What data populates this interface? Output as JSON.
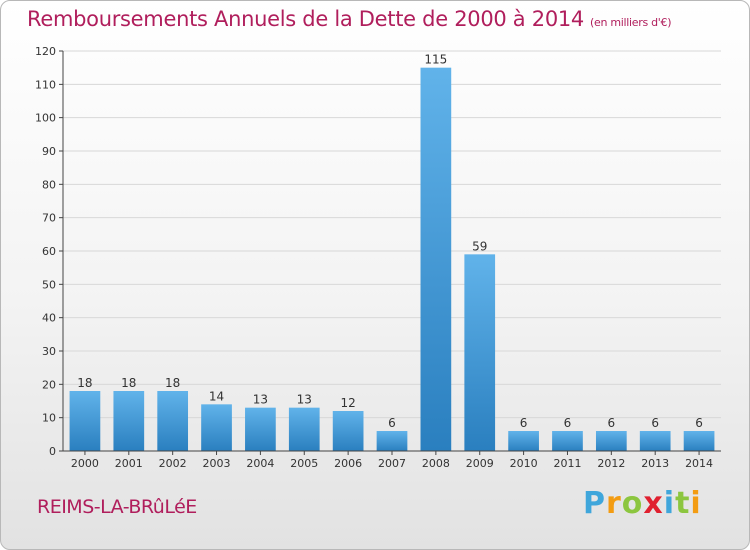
{
  "header": {
    "title": "Remboursements Annuels de la Dette de 2000 à 2014",
    "subtitle": "(en milliers d'€)"
  },
  "footer": {
    "commune": "REIMS-LA-BRûLéE",
    "logo": {
      "letters": [
        "P",
        "r",
        "o",
        "x",
        "i",
        "t",
        "i"
      ],
      "colors": [
        "#3fa6db",
        "#f39c12",
        "#8cc63f",
        "#e0202f",
        "#3fa6db",
        "#8cc63f",
        "#f39c12"
      ]
    }
  },
  "colors": {
    "title": "#b01e5c",
    "bar_light": "#61b3ea",
    "bar_dark": "#2a7fbf",
    "grid": "#d8d8d8"
  },
  "chart_data": {
    "type": "bar",
    "title": "Remboursements Annuels de la Dette de 2000 à 2014",
    "ylabel": "en milliers d'€",
    "categories": [
      "2000",
      "2001",
      "2002",
      "2003",
      "2004",
      "2005",
      "2006",
      "2007",
      "2008",
      "2009",
      "2010",
      "2011",
      "2012",
      "2013",
      "2014"
    ],
    "values": [
      18,
      18,
      18,
      14,
      13,
      13,
      12,
      6,
      115,
      59,
      6,
      6,
      6,
      6,
      6
    ],
    "ylim": [
      0,
      120
    ],
    "yticks": [
      0,
      10,
      20,
      30,
      40,
      50,
      60,
      70,
      80,
      90,
      100,
      110,
      120
    ],
    "grid": true
  }
}
